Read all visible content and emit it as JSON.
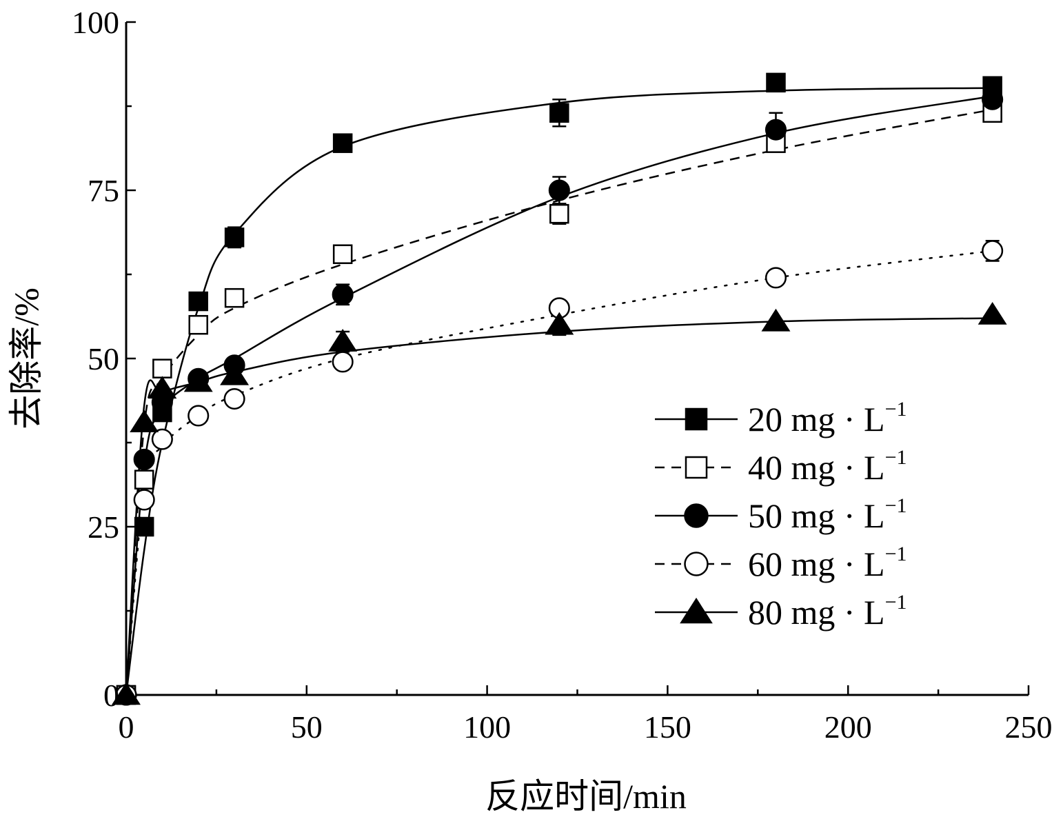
{
  "chart_data": {
    "type": "line",
    "xlabel": "反应时间/min",
    "ylabel": "去除率/%",
    "xlim": [
      0,
      250
    ],
    "ylim": [
      0,
      100
    ],
    "xticks": [
      0,
      50,
      100,
      150,
      200,
      250
    ],
    "yticks": [
      0,
      25,
      50,
      75,
      100
    ],
    "x": [
      0,
      5,
      10,
      20,
      30,
      60,
      120,
      180,
      240
    ],
    "legend_position": "right",
    "grid": false,
    "series": [
      {
        "name": "20 mg · L-1",
        "legend_main": "20 mg · L",
        "legend_sup": "−1",
        "marker": "square-filled",
        "line": "solid",
        "values": [
          0,
          25,
          42,
          58.5,
          68,
          82,
          86.5,
          91,
          90.5
        ],
        "errors": [
          0,
          0,
          0,
          1,
          1.5,
          1,
          2,
          1,
          0.5
        ],
        "fit": [
          0,
          21.5,
          37.5,
          57.5,
          68.5,
          81.5,
          88,
          89.8,
          90.2
        ]
      },
      {
        "name": "40 mg · L-1",
        "legend_main": "40 mg · L",
        "legend_sup": "−1",
        "marker": "square-open",
        "line": "dashed",
        "values": [
          0,
          32,
          48.5,
          55,
          59,
          65.5,
          71.5,
          82,
          86.5
        ],
        "errors": [
          0,
          0,
          0,
          0,
          1,
          1,
          1.5,
          0.5,
          1
        ],
        "fit": [
          0,
          40,
          47,
          53.5,
          57.5,
          64,
          73.5,
          81,
          87
        ]
      },
      {
        "name": "50 mg · L-1",
        "legend_main": "50 mg · L",
        "legend_sup": "−1",
        "marker": "circle-filled",
        "line": "solid",
        "values": [
          0,
          35,
          43.5,
          47,
          49,
          59.5,
          75,
          84,
          88.5
        ],
        "errors": [
          0,
          0,
          0,
          0,
          1,
          1.5,
          2,
          2.5,
          1
        ],
        "fit": [
          0,
          34,
          42.5,
          47,
          50,
          59,
          74,
          83.5,
          89
        ]
      },
      {
        "name": "60 mg · L-1",
        "legend_main": "60 mg · L",
        "legend_sup": "−1",
        "marker": "circle-open",
        "line": "dotted",
        "values": [
          0,
          29,
          38,
          41.5,
          44,
          49.5,
          57.5,
          62,
          66
        ],
        "errors": [
          0,
          0,
          0,
          0,
          1,
          0.5,
          1,
          1,
          1.5
        ],
        "fit": [
          0,
          31,
          37,
          41.5,
          44.5,
          50,
          56.5,
          62,
          66
        ]
      },
      {
        "name": "80 mg · L-1",
        "legend_main": "80 mg · L",
        "legend_sup": "−1",
        "marker": "triangle-filled",
        "line": "solid",
        "values": [
          0,
          40.5,
          45.5,
          46.5,
          47.5,
          52.5,
          55,
          55.5,
          56.5
        ],
        "errors": [
          0,
          0,
          0,
          0,
          1,
          1.5,
          1.5,
          0,
          0
        ],
        "fit": [
          0,
          43,
          45,
          46.5,
          48,
          51,
          54,
          55.5,
          56
        ]
      }
    ]
  }
}
